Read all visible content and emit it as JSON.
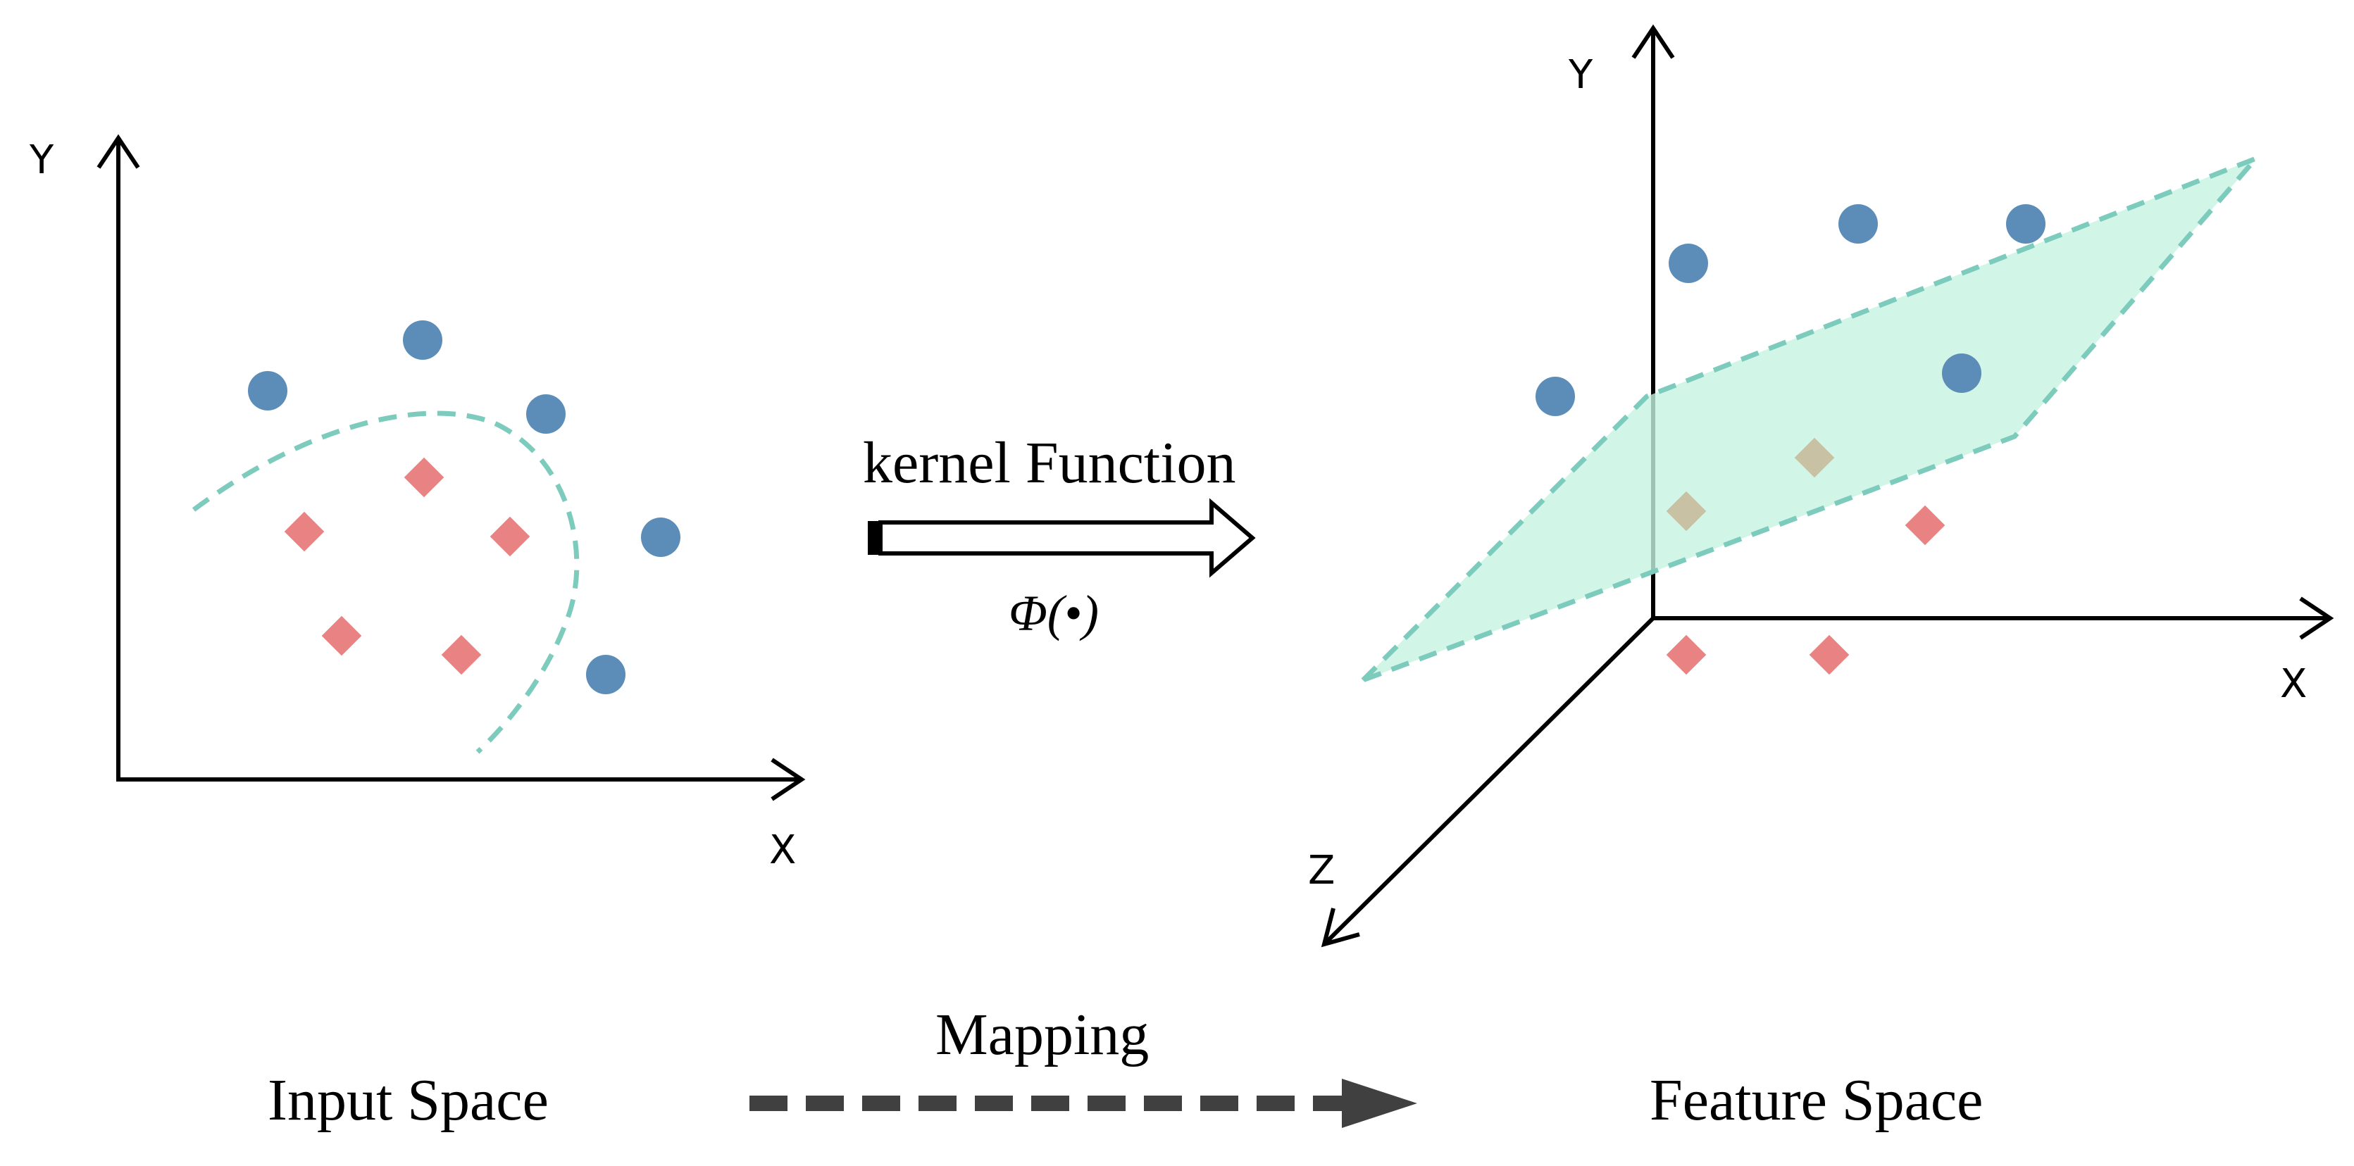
{
  "colors": {
    "class_a": "#5b8db8",
    "class_b": "#e98282",
    "overlap_point": "#c9c1a4",
    "boundary": "#7ccbbd",
    "plane_fill": "#c5f2e0",
    "axis": "#000000",
    "mapping_arrow": "#404040"
  },
  "input_space": {
    "x_label": "X",
    "y_label": "Y",
    "caption": "Input Space"
  },
  "feature_space": {
    "x_label": "X",
    "y_label": "Y",
    "z_label": "Z",
    "caption": "Feature Space"
  },
  "kernel": {
    "label": "kernel Function",
    "symbol": "Φ(•)"
  },
  "mapping": {
    "label": "Mapping"
  }
}
